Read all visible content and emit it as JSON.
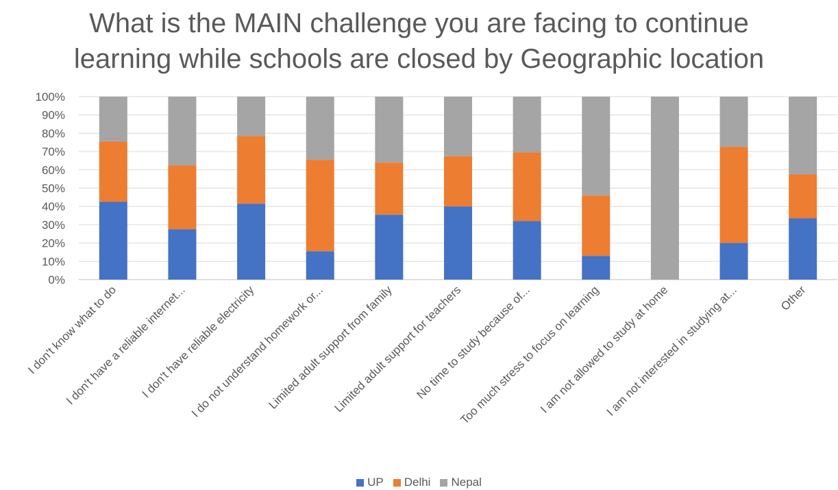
{
  "chart_data": {
    "type": "bar",
    "stacked": "percent",
    "title_lines": [
      "What is the MAIN challenge you are facing to continue",
      "learning while schools are closed by Geographic location"
    ],
    "categories": [
      "I don't know what to do",
      "I don't have a reliable internet...",
      "I don't have reliable electricity",
      "I do not understand homework or...",
      "Limited adult support from family",
      "Limited adult support for teachers",
      "No time to study because of...",
      "Too much stress to focus on learning",
      "I am not allowed to study at home",
      "I am not interested in studying at...",
      "Other"
    ],
    "series": [
      {
        "name": "UP",
        "color": "#4472C4",
        "values": [
          42.5,
          27.5,
          41.5,
          15.5,
          35.5,
          40,
          32,
          13,
          0,
          20,
          33.5
        ]
      },
      {
        "name": "Delhi",
        "color": "#ED7D31",
        "values": [
          33,
          35,
          37,
          50,
          28.5,
          27.5,
          37.5,
          33,
          0,
          52.5,
          24
        ]
      },
      {
        "name": "Nepal",
        "color": "#A5A5A5",
        "values": [
          24.5,
          37.5,
          21.5,
          34.5,
          36,
          32.5,
          30.5,
          54,
          100,
          27.5,
          42.5
        ]
      }
    ],
    "y_ticks": [
      "0%",
      "10%",
      "20%",
      "30%",
      "40%",
      "50%",
      "60%",
      "70%",
      "80%",
      "90%",
      "100%"
    ],
    "ylim": [
      0,
      100
    ],
    "grid": true,
    "legend_position": "bottom"
  }
}
